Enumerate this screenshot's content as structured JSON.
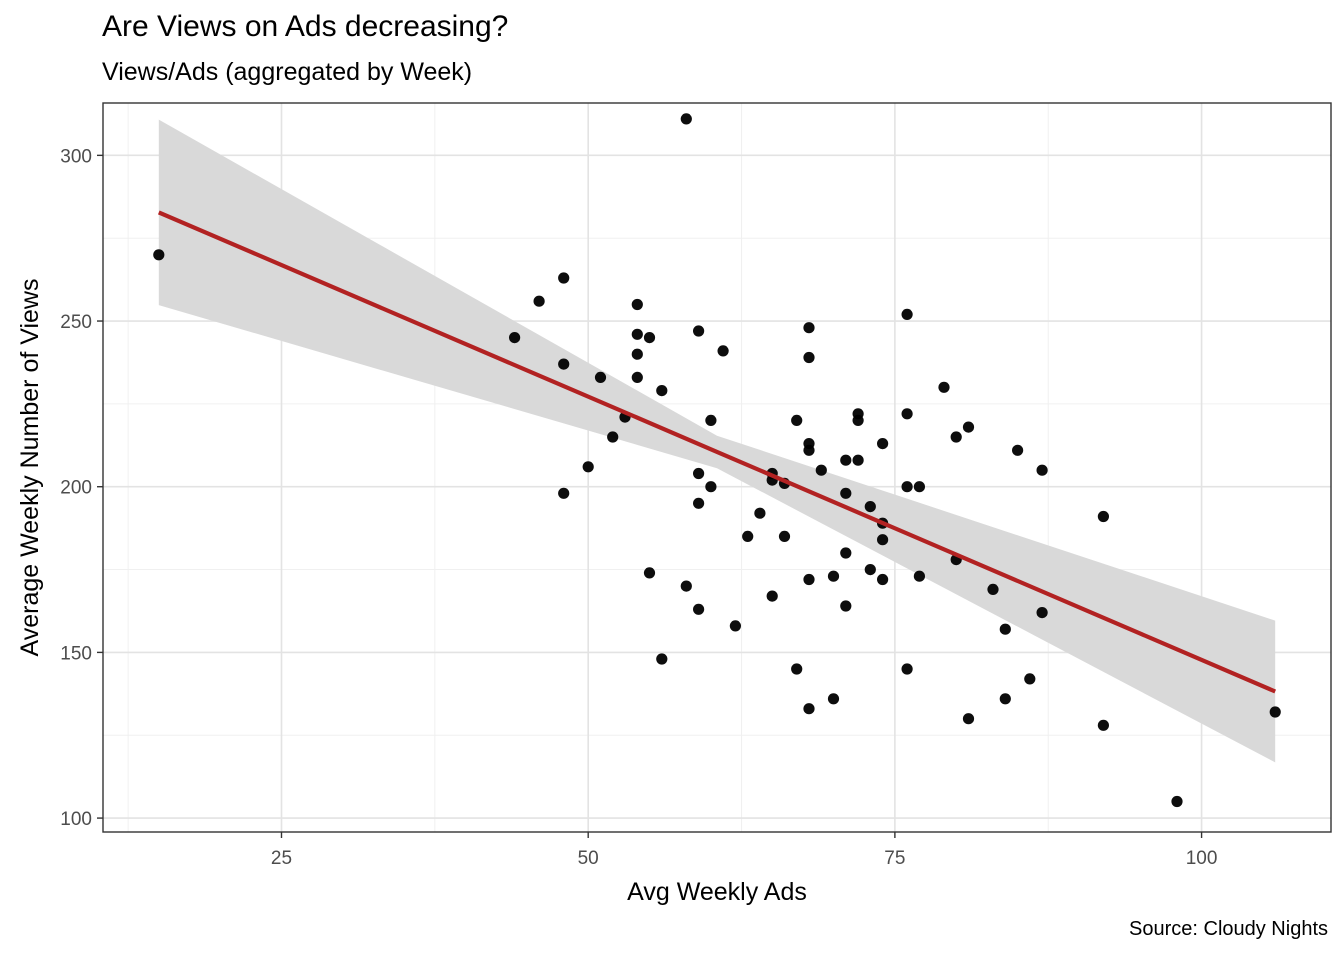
{
  "chart_data": {
    "type": "scatter",
    "title": "Are Views on Ads decreasing?",
    "subtitle": "Views/Ads (aggregated by Week)",
    "caption": "Source: Cloudy Nights",
    "xlabel": "Avg Weekly Ads",
    "ylabel": "Average Weekly Number of Views",
    "xlim": [
      10.45,
      110.55
    ],
    "ylim": [
      95.8,
      315.8
    ],
    "xticks": [
      25,
      50,
      75,
      100
    ],
    "yticks": [
      100,
      150,
      200,
      250,
      300
    ],
    "xtick_labels": [
      "25",
      "50",
      "75",
      "100"
    ],
    "ytick_labels": [
      "100",
      "150",
      "200",
      "250",
      "300"
    ],
    "grid": true,
    "colors": {
      "points": "#000000",
      "fit_line": "#b22222",
      "ribbon": "#d9d9d9"
    },
    "points": [
      {
        "x": 15,
        "y": 270
      },
      {
        "x": 44,
        "y": 245
      },
      {
        "x": 46,
        "y": 256
      },
      {
        "x": 48,
        "y": 263
      },
      {
        "x": 48,
        "y": 237
      },
      {
        "x": 48,
        "y": 198
      },
      {
        "x": 50,
        "y": 206
      },
      {
        "x": 51,
        "y": 233
      },
      {
        "x": 52,
        "y": 215
      },
      {
        "x": 53,
        "y": 221
      },
      {
        "x": 54,
        "y": 255
      },
      {
        "x": 54,
        "y": 246
      },
      {
        "x": 54,
        "y": 240
      },
      {
        "x": 54,
        "y": 233
      },
      {
        "x": 55,
        "y": 245
      },
      {
        "x": 55,
        "y": 174
      },
      {
        "x": 56,
        "y": 229
      },
      {
        "x": 56,
        "y": 148
      },
      {
        "x": 58,
        "y": 311
      },
      {
        "x": 58,
        "y": 170
      },
      {
        "x": 59,
        "y": 247
      },
      {
        "x": 59,
        "y": 204
      },
      {
        "x": 59,
        "y": 195
      },
      {
        "x": 59,
        "y": 163
      },
      {
        "x": 60,
        "y": 220
      },
      {
        "x": 60,
        "y": 200
      },
      {
        "x": 61,
        "y": 241
      },
      {
        "x": 62,
        "y": 158
      },
      {
        "x": 63,
        "y": 185
      },
      {
        "x": 64,
        "y": 192
      },
      {
        "x": 65,
        "y": 204
      },
      {
        "x": 65,
        "y": 202
      },
      {
        "x": 65,
        "y": 167
      },
      {
        "x": 66,
        "y": 201
      },
      {
        "x": 66,
        "y": 185
      },
      {
        "x": 67,
        "y": 220
      },
      {
        "x": 67,
        "y": 145
      },
      {
        "x": 68,
        "y": 248
      },
      {
        "x": 68,
        "y": 239
      },
      {
        "x": 68,
        "y": 213
      },
      {
        "x": 68,
        "y": 211
      },
      {
        "x": 68,
        "y": 172
      },
      {
        "x": 68,
        "y": 133
      },
      {
        "x": 69,
        "y": 205
      },
      {
        "x": 70,
        "y": 173
      },
      {
        "x": 70,
        "y": 136
      },
      {
        "x": 71,
        "y": 208
      },
      {
        "x": 71,
        "y": 198
      },
      {
        "x": 71,
        "y": 180
      },
      {
        "x": 71,
        "y": 164
      },
      {
        "x": 72,
        "y": 222
      },
      {
        "x": 72,
        "y": 220
      },
      {
        "x": 72,
        "y": 208
      },
      {
        "x": 73,
        "y": 194
      },
      {
        "x": 73,
        "y": 175
      },
      {
        "x": 74,
        "y": 213
      },
      {
        "x": 74,
        "y": 189
      },
      {
        "x": 74,
        "y": 184
      },
      {
        "x": 74,
        "y": 172
      },
      {
        "x": 76,
        "y": 252
      },
      {
        "x": 76,
        "y": 222
      },
      {
        "x": 76,
        "y": 200
      },
      {
        "x": 76,
        "y": 145
      },
      {
        "x": 77,
        "y": 200
      },
      {
        "x": 77,
        "y": 173
      },
      {
        "x": 79,
        "y": 230
      },
      {
        "x": 80,
        "y": 215
      },
      {
        "x": 80,
        "y": 178
      },
      {
        "x": 81,
        "y": 218
      },
      {
        "x": 81,
        "y": 130
      },
      {
        "x": 83,
        "y": 169
      },
      {
        "x": 84,
        "y": 157
      },
      {
        "x": 84,
        "y": 136
      },
      {
        "x": 85,
        "y": 211
      },
      {
        "x": 86,
        "y": 142
      },
      {
        "x": 87,
        "y": 205
      },
      {
        "x": 87,
        "y": 162
      },
      {
        "x": 92,
        "y": 191
      },
      {
        "x": 92,
        "y": 128
      },
      {
        "x": 98,
        "y": 105
      },
      {
        "x": 106,
        "y": 132
      }
    ],
    "fit": {
      "x": [
        15,
        60.5,
        106
      ],
      "y": [
        282.8,
        210.5,
        138.2
      ],
      "lower": [
        254.8,
        205.6,
        116.8
      ],
      "upper": [
        310.8,
        215.4,
        159.6
      ]
    }
  }
}
